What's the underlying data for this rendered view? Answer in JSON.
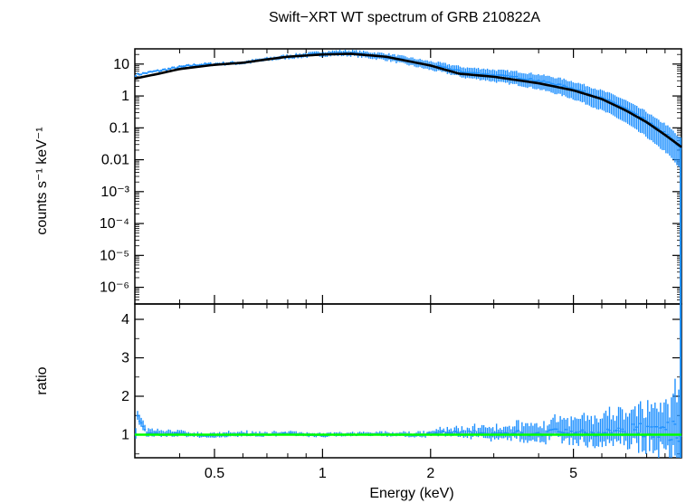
{
  "chart_data": {
    "type": "line",
    "title": "Swift−XRT WT spectrum of GRB 210822A",
    "xlabel": "Energy (keV)",
    "x_scale": "log",
    "xlim": [
      0.3,
      10
    ],
    "x_ticks": [
      "0.5",
      "1",
      "2",
      "5"
    ],
    "colors": {
      "data": "#1e90ff",
      "model": "#000000",
      "ratio_ref": "#00ff00"
    },
    "panels": [
      {
        "name": "spectrum",
        "ylabel": "counts s⁻¹ keV⁻¹",
        "y_scale": "log",
        "ylim": [
          3e-07,
          30
        ],
        "y_ticks": [
          {
            "value": 10,
            "label": "10"
          },
          {
            "value": 1,
            "label": "1"
          },
          {
            "value": 0.1,
            "label": "0.1"
          },
          {
            "value": 0.01,
            "label": "0.01"
          },
          {
            "value": 0.001,
            "label": "10⁻³"
          },
          {
            "value": 0.0001,
            "label": "10⁻⁴"
          },
          {
            "value": 1e-05,
            "label": "10⁻⁵"
          },
          {
            "value": 1e-06,
            "label": "10⁻⁶"
          }
        ],
        "model": {
          "x": [
            0.3,
            0.35,
            0.4,
            0.5,
            0.6,
            0.7,
            0.8,
            1.0,
            1.2,
            1.5,
            2.0,
            2.4,
            3.0,
            4.0,
            5.0,
            6.0,
            7.0,
            8.0,
            9.0,
            10.0
          ],
          "y": [
            3.5,
            5.0,
            7.0,
            9.5,
            11.0,
            14.0,
            17.0,
            20.0,
            21.0,
            17.0,
            9.0,
            5.0,
            4.0,
            2.5,
            1.5,
            0.8,
            0.35,
            0.15,
            0.06,
            0.025
          ]
        },
        "data_series": {
          "x": [
            0.3,
            0.33,
            0.36,
            0.4,
            0.45,
            0.5,
            0.55,
            0.6,
            0.7,
            0.8,
            0.9,
            1.0,
            1.1,
            1.2,
            1.3,
            1.5,
            1.7,
            2.0,
            2.2,
            2.5,
            2.8,
            3.0,
            3.5,
            4.0,
            4.5,
            5.0,
            5.5,
            6.0,
            6.5,
            7.0,
            7.5,
            8.0,
            8.5,
            9.0,
            9.5,
            10.0
          ],
          "y": [
            4.5,
            5.5,
            6.5,
            8.0,
            9.5,
            10.0,
            10.5,
            11.0,
            14.0,
            17.0,
            19.0,
            21.0,
            22.0,
            22.0,
            20.0,
            17.0,
            13.0,
            9.0,
            7.5,
            5.5,
            5.0,
            4.5,
            3.8,
            3.0,
            2.3,
            1.7,
            1.2,
            0.85,
            0.6,
            0.4,
            0.25,
            0.17,
            0.1,
            0.07,
            0.04,
            0.02
          ]
        }
      },
      {
        "name": "ratio",
        "ylabel": "ratio",
        "y_scale": "linear",
        "ylim": [
          0.4,
          4.4
        ],
        "y_ticks": [
          {
            "value": 1,
            "label": "1"
          },
          {
            "value": 2,
            "label": "2"
          },
          {
            "value": 3,
            "label": "3"
          },
          {
            "value": 4,
            "label": "4"
          }
        ],
        "reference_line": 1.0,
        "data_series": {
          "x": [
            0.3,
            0.33,
            0.36,
            0.4,
            0.45,
            0.5,
            0.55,
            0.6,
            0.7,
            0.8,
            0.9,
            1.0,
            1.2,
            1.5,
            1.8,
            2.0,
            2.5,
            3.0,
            3.5,
            4.0,
            4.5,
            5.0,
            5.5,
            6.0,
            6.5,
            7.0,
            7.5,
            8.0,
            8.5,
            9.0,
            9.5,
            10.0
          ],
          "y": [
            1.6,
            1.1,
            1.0,
            1.05,
            0.98,
            0.92,
            1.0,
            1.02,
            1.0,
            1.05,
            1.0,
            0.98,
            1.0,
            1.02,
            0.98,
            1.05,
            1.1,
            1.05,
            1.1,
            1.0,
            1.15,
            1.05,
            1.1,
            1.0,
            1.2,
            1.1,
            1.3,
            1.1,
            1.35,
            1.2,
            1.3,
            1.1
          ]
        },
        "error_spread": [
          0.15,
          0.12,
          0.1,
          0.1,
          0.08,
          0.08,
          0.08,
          0.08,
          0.07,
          0.07,
          0.07,
          0.06,
          0.06,
          0.07,
          0.08,
          0.1,
          0.15,
          0.2,
          0.25,
          0.3,
          0.35,
          0.4,
          0.45,
          0.5,
          0.55,
          0.6,
          0.65,
          0.7,
          0.8,
          0.9,
          1.0,
          1.2
        ]
      }
    ]
  }
}
